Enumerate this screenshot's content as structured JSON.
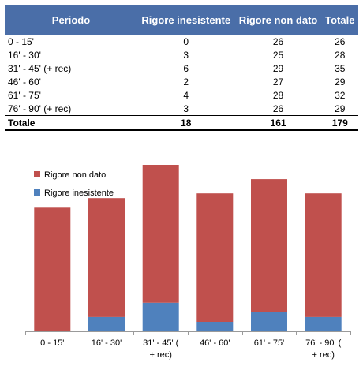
{
  "table": {
    "headers": [
      "Periodo",
      "Rigore inesistente",
      "Rigore non dato",
      "Totale"
    ],
    "rows": [
      [
        "0 - 15'",
        "0",
        "26",
        "26"
      ],
      [
        "16' - 30'",
        "3",
        "25",
        "28"
      ],
      [
        "31' - 45' (+ rec)",
        "6",
        "29",
        "35"
      ],
      [
        "46' - 60'",
        "2",
        "27",
        "29"
      ],
      [
        "61' - 75'",
        "4",
        "28",
        "32"
      ],
      [
        "76' - 90' (+ rec)",
        "3",
        "26",
        "29"
      ]
    ],
    "total": [
      "Totale",
      "18",
      "161",
      "179"
    ]
  },
  "chart_data": {
    "type": "bar",
    "stacked": true,
    "categories": [
      "0 - 15'",
      "16' - 30'",
      "31' - 45' (+ rec)",
      "46' - 60'",
      "61' - 75'",
      "76' - 90' (+ rec)"
    ],
    "series": [
      {
        "name": "Rigore inesistente",
        "values": [
          0,
          3,
          6,
          2,
          4,
          3
        ],
        "color": "#4f81bd"
      },
      {
        "name": "Rigore non dato",
        "values": [
          26,
          25,
          29,
          27,
          28,
          26
        ],
        "color": "#c0504d"
      }
    ],
    "ylim": [
      0,
      35
    ],
    "grid": false,
    "legend": "top-left"
  }
}
